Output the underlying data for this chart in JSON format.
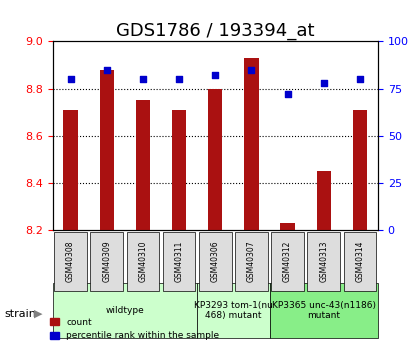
{
  "title": "GDS1786 / 193394_at",
  "samples": [
    "GSM40308",
    "GSM40309",
    "GSM40310",
    "GSM40311",
    "GSM40306",
    "GSM40307",
    "GSM40312",
    "GSM40313",
    "GSM40314"
  ],
  "count_values": [
    8.71,
    8.88,
    8.75,
    8.71,
    8.8,
    8.93,
    8.23,
    8.45,
    8.71
  ],
  "percentile_values": [
    80,
    85,
    80,
    80,
    82,
    85,
    72,
    78,
    80
  ],
  "ylim_left": [
    8.2,
    9.0
  ],
  "ylim_right": [
    0,
    100
  ],
  "yticks_left": [
    8.2,
    8.4,
    8.6,
    8.8,
    9.0
  ],
  "yticks_right": [
    0,
    25,
    50,
    75,
    100
  ],
  "bar_color": "#aa1111",
  "dot_color": "#0000cc",
  "bar_bottom": 8.2,
  "grid_color": "#000000",
  "strain_groups": [
    {
      "label": "wildtype",
      "start": 0,
      "end": 4,
      "color": "#ccffcc"
    },
    {
      "label": "KP3293 tom-1(nu\n468) mutant",
      "start": 4,
      "end": 6,
      "color": "#ccffcc"
    },
    {
      "label": "KP3365 unc-43(n1186)\nmutant",
      "start": 6,
      "end": 9,
      "color": "#88ee88"
    }
  ],
  "xlabel": "strain",
  "legend_items": [
    {
      "label": "count",
      "color": "#aa1111"
    },
    {
      "label": "percentile rank within the sample",
      "color": "#0000cc"
    }
  ],
  "title_fontsize": 13,
  "tick_fontsize": 8,
  "label_fontsize": 8
}
